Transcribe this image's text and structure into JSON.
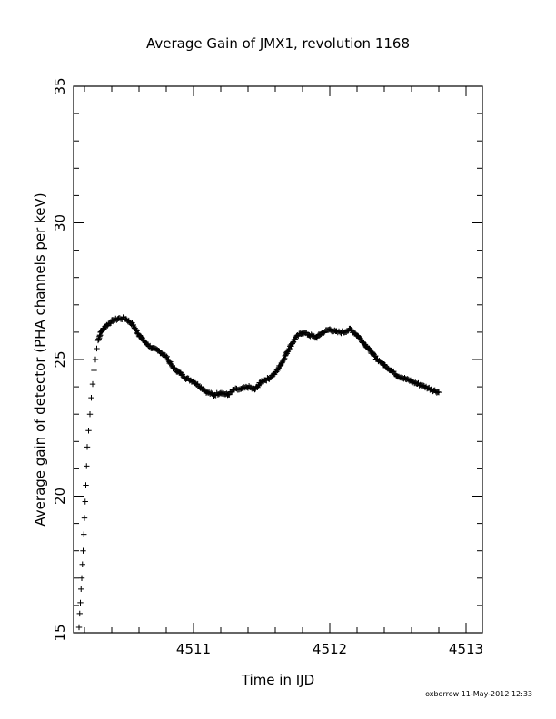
{
  "chart_data": {
    "type": "scatter",
    "title": "Average Gain of JMX1, revolution 1168",
    "xlabel": "Time in IJD",
    "ylabel": "Average gain of detector (PHA channels per keV)",
    "xlim": [
      4510.12,
      4513.12
    ],
    "ylim": [
      15,
      35
    ],
    "x_major_ticks": [
      4511,
      4512,
      4513
    ],
    "x_minor_step": 0.2,
    "y_major_ticks": [
      15,
      20,
      25,
      30,
      35
    ],
    "y_minor_step": 1,
    "marker": "plus",
    "grid": false,
    "legend": "none",
    "footer": "oxborrow 11-May-2012 12:33",
    "curve": {
      "x": [
        4510.16,
        4510.165,
        4510.17,
        4510.175,
        4510.18,
        4510.185,
        4510.19,
        4510.195,
        4510.2,
        4510.205,
        4510.21,
        4510.215,
        4510.22,
        4510.23,
        4510.24,
        4510.25,
        4510.26,
        4510.27,
        4510.28,
        4510.29,
        4510.3,
        4510.32,
        4510.35,
        4510.4,
        4510.45,
        4510.5,
        4510.55,
        4510.6,
        4510.65,
        4510.7,
        4510.75,
        4510.8,
        4510.85,
        4510.9,
        4510.95,
        4511.0,
        4511.05,
        4511.1,
        4511.15,
        4511.2,
        4511.25,
        4511.3,
        4511.35,
        4511.4,
        4511.45,
        4511.5,
        4511.55,
        4511.6,
        4511.65,
        4511.7,
        4511.75,
        4511.8,
        4511.85,
        4511.9,
        4511.95,
        4512.0,
        4512.05,
        4512.1,
        4512.15,
        4512.2,
        4512.25,
        4512.3,
        4512.35,
        4512.4,
        4512.45,
        4512.5,
        4512.55,
        4512.6,
        4512.65,
        4512.7,
        4512.75,
        4512.8
      ],
      "y": [
        15.2,
        15.7,
        16.1,
        16.6,
        17.0,
        17.5,
        18.0,
        18.6,
        19.2,
        19.8,
        20.4,
        21.1,
        21.8,
        22.4,
        23.0,
        23.6,
        24.1,
        24.6,
        25.0,
        25.4,
        25.7,
        26.0,
        26.2,
        26.4,
        26.5,
        26.5,
        26.3,
        25.9,
        25.6,
        25.4,
        25.3,
        25.1,
        24.7,
        24.5,
        24.3,
        24.2,
        24.0,
        23.8,
        23.7,
        23.8,
        23.7,
        23.9,
        23.9,
        24.0,
        23.9,
        24.2,
        24.3,
        24.5,
        24.9,
        25.4,
        25.8,
        26.0,
        25.9,
        25.8,
        26.0,
        26.1,
        26.0,
        26.0,
        26.1,
        25.9,
        25.6,
        25.3,
        25.0,
        24.8,
        24.6,
        24.4,
        24.3,
        24.2,
        24.1,
        24.0,
        23.9,
        23.8
      ]
    }
  }
}
